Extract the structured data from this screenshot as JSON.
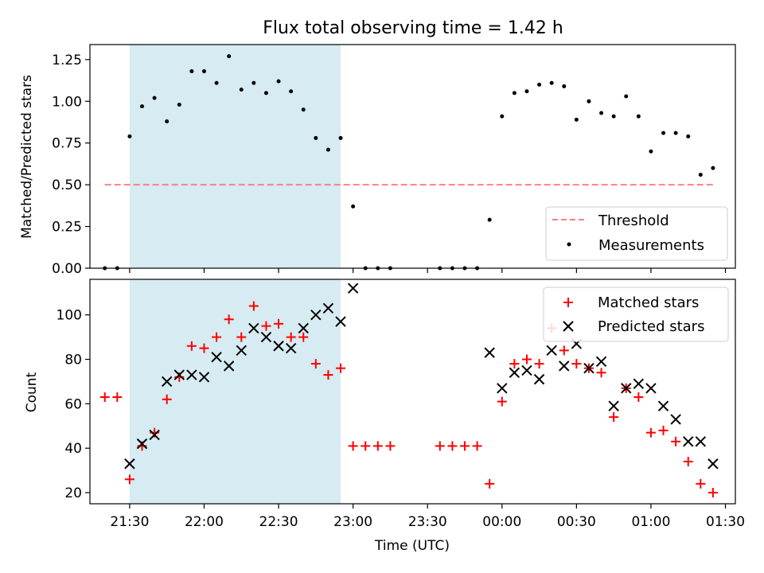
{
  "title": "Flux total observing time = 1.42 h",
  "chart_data": [
    {
      "type": "scatter",
      "ylabel": "Matched/Predicted stars",
      "xlabel": "",
      "xlim": [
        "21:14",
        "01:34"
      ],
      "ylim": [
        0,
        1.34
      ],
      "yticks": [
        "0.00",
        "0.25",
        "0.50",
        "0.75",
        "1.00",
        "1.25"
      ],
      "ytick_values": [
        0,
        0.25,
        0.5,
        0.75,
        1.0,
        1.25
      ],
      "shaded_x": [
        "21:30",
        "22:55"
      ],
      "legend_position": "lower right",
      "legend": [
        "Threshold",
        "Measurements"
      ],
      "threshold": {
        "y": 0.5,
        "x_start": "21:20",
        "x_end": "01:25",
        "color": "#ff8080"
      },
      "measurements": {
        "x": [
          "21:20",
          "21:25",
          "21:30",
          "21:35",
          "21:40",
          "21:45",
          "21:50",
          "21:55",
          "22:00",
          "22:05",
          "22:10",
          "22:15",
          "22:20",
          "22:25",
          "22:30",
          "22:35",
          "22:40",
          "22:45",
          "22:50",
          "22:55",
          "23:00",
          "23:05",
          "23:10",
          "23:15",
          "23:35",
          "23:40",
          "23:45",
          "23:50",
          "23:55",
          "00:00",
          "00:05",
          "00:10",
          "00:15",
          "00:20",
          "00:25",
          "00:30",
          "00:35",
          "00:40",
          "00:45",
          "00:50",
          "00:55",
          "01:00",
          "01:05",
          "01:10",
          "01:15",
          "01:20",
          "01:25"
        ],
        "y": [
          0.0,
          0.0,
          0.79,
          0.97,
          1.02,
          0.88,
          0.98,
          1.18,
          1.18,
          1.11,
          1.27,
          1.07,
          1.11,
          1.05,
          1.12,
          1.06,
          0.95,
          0.78,
          0.71,
          0.78,
          0.37,
          0.0,
          0.0,
          0.0,
          0.0,
          0.0,
          0.0,
          0.0,
          0.29,
          0.91,
          1.05,
          1.06,
          1.1,
          1.11,
          1.09,
          0.89,
          1.0,
          0.93,
          0.91,
          1.03,
          0.91,
          0.7,
          0.81,
          0.81,
          0.79,
          0.56,
          0.6
        ]
      }
    },
    {
      "type": "scatter",
      "ylabel": "Count",
      "xlabel": "Time (UTC)",
      "xlim": [
        "21:14",
        "01:34"
      ],
      "ylim": [
        15,
        116
      ],
      "yticks": [
        "20",
        "40",
        "60",
        "80",
        "100"
      ],
      "ytick_values": [
        20,
        40,
        60,
        80,
        100
      ],
      "xticks": [
        "21:30",
        "22:00",
        "22:30",
        "23:00",
        "23:30",
        "00:00",
        "00:30",
        "01:00",
        "01:30"
      ],
      "shaded_x": [
        "21:30",
        "22:55"
      ],
      "legend_position": "upper right",
      "series": [
        {
          "name": "Matched stars",
          "marker": "plus",
          "color": "#ff0000",
          "x": [
            "21:20",
            "21:25",
            "21:30",
            "21:35",
            "21:40",
            "21:45",
            "21:50",
            "21:55",
            "22:00",
            "22:05",
            "22:10",
            "22:15",
            "22:20",
            "22:25",
            "22:30",
            "22:35",
            "22:40",
            "22:45",
            "22:50",
            "22:55",
            "23:00",
            "23:05",
            "23:10",
            "23:15",
            "23:35",
            "23:40",
            "23:45",
            "23:50",
            "23:55",
            "00:00",
            "00:05",
            "00:10",
            "00:15",
            "00:20",
            "00:25",
            "00:30",
            "00:35",
            "00:40",
            "00:45",
            "00:50",
            "00:55",
            "01:00",
            "01:05",
            "01:10",
            "01:15",
            "01:20",
            "01:25"
          ],
          "y": [
            63,
            63,
            26,
            41,
            47,
            62,
            72,
            86,
            85,
            90,
            98,
            90,
            104,
            95,
            96,
            90,
            90,
            78,
            73,
            76,
            41,
            41,
            41,
            41,
            41,
            41,
            41,
            41,
            24,
            61,
            78,
            80,
            78,
            94,
            84,
            78,
            76,
            74,
            54,
            67,
            63,
            47,
            48,
            43,
            34,
            24,
            20
          ]
        },
        {
          "name": "Predicted stars",
          "marker": "x",
          "color": "#000000",
          "x": [
            "21:30",
            "21:35",
            "21:40",
            "21:45",
            "21:50",
            "21:55",
            "22:00",
            "22:05",
            "22:10",
            "22:15",
            "22:20",
            "22:25",
            "22:30",
            "22:35",
            "22:40",
            "22:45",
            "22:50",
            "22:55",
            "23:00",
            "23:55",
            "00:00",
            "00:05",
            "00:10",
            "00:15",
            "00:20",
            "00:25",
            "00:30",
            "00:35",
            "00:40",
            "00:45",
            "00:50",
            "00:55",
            "01:00",
            "01:05",
            "01:10",
            "01:15",
            "01:20",
            "01:25"
          ],
          "y": [
            33,
            42,
            46,
            70,
            73,
            73,
            72,
            81,
            77,
            84,
            94,
            90,
            86,
            85,
            94,
            100,
            103,
            97,
            112,
            83,
            67,
            74,
            75,
            71,
            84,
            77,
            87,
            76,
            79,
            59,
            67,
            69,
            67,
            59,
            53,
            43,
            43,
            33
          ]
        }
      ]
    }
  ]
}
